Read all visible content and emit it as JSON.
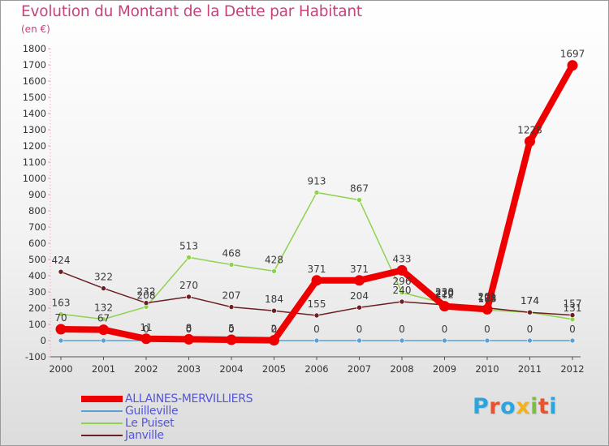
{
  "title": "Evolution du Montant de la Dette par Habitant",
  "unit": "(en €)",
  "brand": {
    "text": "Proxiti",
    "colors": [
      "#2aa5de",
      "#e8522e",
      "#2aa5de",
      "#f2b11d",
      "#7dbe3c",
      "#e8522e",
      "#2aa5de"
    ]
  },
  "chart_data": {
    "type": "line",
    "x": [
      "2000",
      "2001",
      "2002",
      "2003",
      "2004",
      "2005",
      "2006",
      "2007",
      "2008",
      "2009",
      "2010",
      "2011",
      "2012"
    ],
    "ylim": [
      -100,
      1800
    ],
    "yticks": [
      -100,
      0,
      100,
      200,
      300,
      400,
      500,
      600,
      700,
      800,
      900,
      1000,
      1100,
      1200,
      1300,
      1400,
      1500,
      1600,
      1700,
      1800
    ],
    "grid": false,
    "legend_position": "bottom-left",
    "series": [
      {
        "name": "ALLAINES-MERVILLIERS",
        "color": "#ee0000",
        "emphasis": true,
        "values": [
          70,
          67,
          11,
          8,
          5,
          2,
          371,
          371,
          433,
          212,
          193,
          1228,
          1697
        ],
        "labels": [
          "70",
          "67",
          "11",
          "8",
          "5",
          "2",
          "371",
          "371",
          "433",
          "212",
          "193",
          "1228",
          "1697"
        ]
      },
      {
        "name": "Guilleville",
        "color": "#5aa0d2",
        "values": [
          0,
          0,
          0,
          0,
          0,
          0,
          0,
          0,
          0,
          0,
          0,
          0,
          0
        ],
        "labels": [
          "",
          "",
          "0",
          "0",
          "0",
          "0",
          "0",
          "0",
          "0",
          "0",
          "0",
          "0",
          "0"
        ]
      },
      {
        "name": "Le Puiset",
        "color": "#8fd24e",
        "values": [
          163,
          132,
          208,
          513,
          468,
          428,
          913,
          867,
          296,
          230,
          188,
          174,
          131
        ],
        "labels": [
          "163",
          "132",
          "208",
          "513",
          "468",
          "428",
          "913",
          "867",
          "296",
          "230",
          "188",
          "174",
          "131"
        ]
      },
      {
        "name": "Janville",
        "color": "#6b1f22",
        "values": [
          424,
          322,
          232,
          270,
          207,
          184,
          155,
          204,
          240,
          220,
          201,
          174,
          157
        ],
        "labels": [
          "424",
          "322",
          "232",
          "270",
          "207",
          "184",
          "155",
          "204",
          "240",
          "220",
          "201",
          "174",
          "157"
        ]
      }
    ]
  }
}
